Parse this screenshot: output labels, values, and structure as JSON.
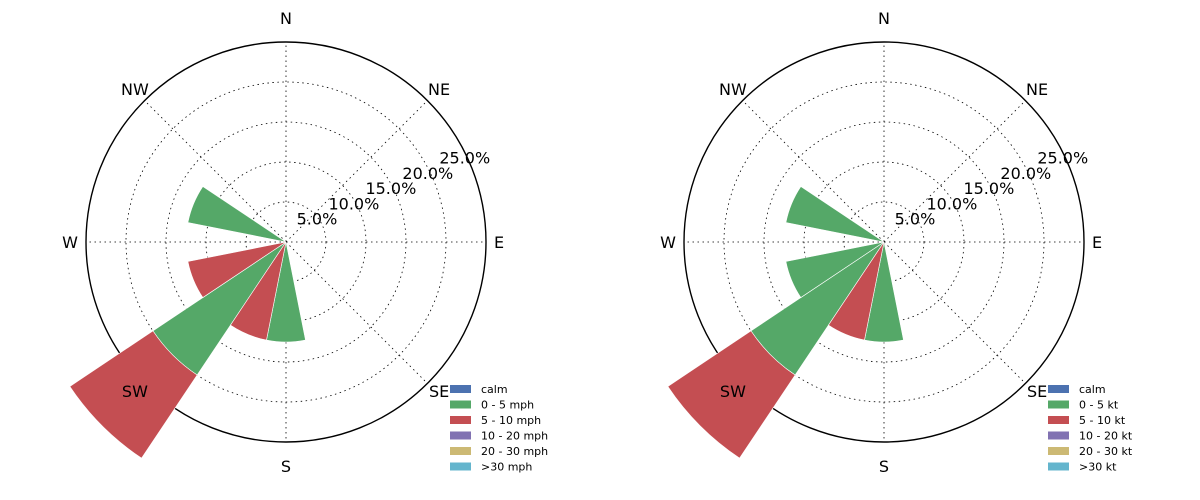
{
  "chart_data": [
    {
      "type": "windrose",
      "directions": [
        "N",
        "NE",
        "E",
        "SE",
        "S",
        "SW",
        "W",
        "NW"
      ],
      "sectors": [
        "N",
        "NNE",
        "NE",
        "ENE",
        "E",
        "ESE",
        "SE",
        "SSE",
        "S",
        "SSW",
        "SW",
        "WSW",
        "W",
        "WNW",
        "NW",
        "NNW"
      ],
      "radial_ticks": [
        "5.0%",
        "10.0%",
        "15.0%",
        "20.0%",
        "25.0%"
      ],
      "rmax": 25,
      "legend_position": "lower-right",
      "legend": [
        "calm",
        "0 - 5 mph",
        "5 - 10 mph",
        "10 - 20 mph",
        "20 - 30 mph",
        ">30 mph"
      ],
      "colors": [
        "#4c72b0",
        "#55a868",
        "#c44e52",
        "#8172b2",
        "#ccb974",
        "#64b5cd"
      ],
      "series": [
        {
          "name": "calm",
          "values": [
            0,
            0,
            0,
            0,
            0,
            0,
            0,
            0,
            0,
            0,
            0,
            0,
            0,
            0,
            0,
            0
          ]
        },
        {
          "name": "0 - 5 mph",
          "values": [
            0,
            0,
            0,
            0,
            0,
            0,
            0,
            0,
            12.5,
            0,
            20.0,
            0,
            0,
            12.5,
            0,
            0
          ]
        },
        {
          "name": "5 - 10 mph",
          "values": [
            0,
            0,
            0,
            0,
            0,
            0,
            0,
            0,
            0,
            12.5,
            12.5,
            12.5,
            0,
            0,
            0,
            0
          ]
        },
        {
          "name": "10 - 20 mph",
          "values": [
            0,
            0,
            0,
            0,
            0,
            0,
            0,
            0,
            0,
            0,
            0,
            0,
            0,
            0,
            0,
            0
          ]
        },
        {
          "name": "20 - 30 mph",
          "values": [
            0,
            0,
            0,
            0,
            0,
            0,
            0,
            0,
            0,
            0,
            0,
            0,
            0,
            0,
            0,
            0
          ]
        },
        {
          "name": ">30 mph",
          "values": [
            0,
            0,
            0,
            0,
            0,
            0,
            0,
            0,
            0,
            0,
            0,
            0,
            0,
            0,
            0,
            0
          ]
        }
      ]
    },
    {
      "type": "windrose",
      "directions": [
        "N",
        "NE",
        "E",
        "SE",
        "S",
        "SW",
        "W",
        "NW"
      ],
      "sectors": [
        "N",
        "NNE",
        "NE",
        "ENE",
        "E",
        "ESE",
        "SE",
        "SSE",
        "S",
        "SSW",
        "SW",
        "WSW",
        "W",
        "WNW",
        "NW",
        "NNW"
      ],
      "radial_ticks": [
        "5.0%",
        "10.0%",
        "15.0%",
        "20.0%",
        "25.0%"
      ],
      "rmax": 25,
      "legend_position": "lower-right",
      "legend": [
        "calm",
        "0 - 5 kt",
        "5 - 10 kt",
        "10 - 20 kt",
        "20 - 30 kt",
        ">30 kt"
      ],
      "colors": [
        "#4c72b0",
        "#55a868",
        "#c44e52",
        "#8172b2",
        "#ccb974",
        "#64b5cd"
      ],
      "series": [
        {
          "name": "calm",
          "values": [
            0,
            0,
            0,
            0,
            0,
            0,
            0,
            0,
            0,
            0,
            0,
            0,
            0,
            0,
            0,
            0
          ]
        },
        {
          "name": "0 - 5 kt",
          "values": [
            0,
            0,
            0,
            0,
            0,
            0,
            0,
            0,
            12.5,
            0,
            20.0,
            12.5,
            0,
            12.5,
            0,
            0
          ]
        },
        {
          "name": "5 - 10 kt",
          "values": [
            0,
            0,
            0,
            0,
            0,
            0,
            0,
            0,
            0,
            12.5,
            12.5,
            0,
            0,
            0,
            0,
            0
          ]
        },
        {
          "name": "10 - 20 kt",
          "values": [
            0,
            0,
            0,
            0,
            0,
            0,
            0,
            0,
            0,
            0,
            0,
            0,
            0,
            0,
            0,
            0
          ]
        },
        {
          "name": "20 - 30 kt",
          "values": [
            0,
            0,
            0,
            0,
            0,
            0,
            0,
            0,
            0,
            0,
            0,
            0,
            0,
            0,
            0,
            0
          ]
        },
        {
          "name": ">30 kt",
          "values": [
            0,
            0,
            0,
            0,
            0,
            0,
            0,
            0,
            0,
            0,
            0,
            0,
            0,
            0,
            0,
            0
          ]
        }
      ]
    }
  ]
}
